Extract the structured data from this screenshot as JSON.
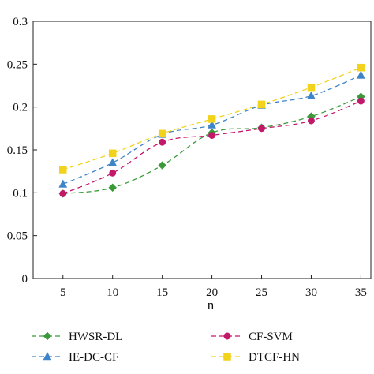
{
  "chart_data": {
    "type": "line",
    "title": "",
    "xlabel": "n",
    "ylabel": "",
    "x": [
      5,
      10,
      15,
      20,
      25,
      30,
      35
    ],
    "xlim": [
      2,
      36
    ],
    "ylim": [
      0,
      0.3
    ],
    "x_ticks": [
      "5",
      "10",
      "15",
      "20",
      "25",
      "30",
      "35"
    ],
    "y_ticks": [
      "0",
      "0.05",
      "0.1",
      "0.15",
      "0.2",
      "0.25",
      "0.3"
    ],
    "y_tick_values": [
      0,
      0.05,
      0.1,
      0.15,
      0.2,
      0.25,
      0.3
    ],
    "grid": false,
    "legend_position": "bottom",
    "series": [
      {
        "name": "HWSR-DL",
        "color": "#3a9a3a",
        "marker": "diamond",
        "values": [
          0.099,
          0.106,
          0.132,
          0.17,
          0.176,
          0.189,
          0.212
        ]
      },
      {
        "name": "CF-SVM",
        "color": "#c2186a",
        "marker": "circle",
        "values": [
          0.099,
          0.123,
          0.159,
          0.167,
          0.175,
          0.184,
          0.207
        ]
      },
      {
        "name": "IE-DC-CF",
        "color": "#3f84c8",
        "marker": "triangle",
        "values": [
          0.11,
          0.135,
          0.168,
          0.179,
          0.202,
          0.213,
          0.237
        ]
      },
      {
        "name": "DTCF-HN",
        "color": "#f2d21a",
        "marker": "square",
        "values": [
          0.127,
          0.146,
          0.169,
          0.186,
          0.203,
          0.223,
          0.246
        ]
      }
    ]
  }
}
